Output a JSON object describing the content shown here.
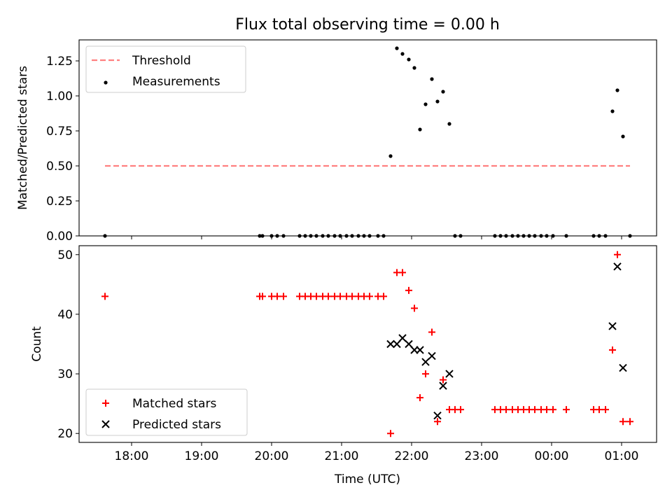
{
  "chart_data": {
    "type": "scatter",
    "title": "Flux total observing time = 0.00 h",
    "xlabel": "Time (UTC)",
    "x_ticks": [
      "18:00",
      "19:00",
      "20:00",
      "21:00",
      "22:00",
      "23:00",
      "00:00",
      "01:00"
    ],
    "x_tick_hours": [
      18,
      19,
      20,
      21,
      22,
      23,
      24,
      25
    ],
    "xlim": [
      17.25,
      25.5
    ],
    "panels": [
      {
        "ylabel": "Matched/Predicted stars",
        "ylim": [
          0,
          1.4
        ],
        "y_ticks": [
          "0.00",
          "0.25",
          "0.50",
          "0.75",
          "1.00",
          "1.25"
        ],
        "y_tick_values": [
          0,
          0.25,
          0.5,
          0.75,
          1.0,
          1.25
        ],
        "legend_position": "top-left",
        "series": [
          {
            "name": "Threshold",
            "kind": "dashed-line",
            "color": "#ff8080",
            "x": [
              17.62,
              25.12
            ],
            "y": [
              0.5,
              0.5
            ]
          },
          {
            "name": "Measurements",
            "kind": "dot",
            "color": "#000000",
            "x": [
              17.62,
              19.83,
              19.87,
              20.0,
              20.08,
              20.17,
              20.4,
              20.48,
              20.56,
              20.64,
              20.73,
              20.81,
              20.9,
              20.98,
              21.07,
              21.15,
              21.24,
              21.32,
              21.4,
              21.52,
              21.6,
              21.7,
              21.79,
              21.87,
              21.96,
              22.04,
              22.12,
              22.2,
              22.29,
              22.37,
              22.45,
              22.54,
              22.62,
              22.7,
              23.19,
              23.27,
              23.35,
              23.44,
              23.52,
              23.6,
              23.68,
              23.76,
              23.85,
              23.93,
              24.02,
              24.21,
              24.6,
              24.68,
              24.77,
              24.87,
              24.94,
              25.02,
              25.12
            ],
            "y": [
              0,
              0,
              0,
              0,
              0,
              0,
              0,
              0,
              0,
              0,
              0,
              0,
              0,
              0,
              0,
              0,
              0,
              0,
              0,
              0,
              0,
              0.57,
              1.34,
              1.3,
              1.26,
              1.2,
              0.76,
              0.94,
              1.12,
              0.96,
              1.03,
              0.8,
              0,
              0,
              0,
              0,
              0,
              0,
              0,
              0,
              0,
              0,
              0,
              0,
              0,
              0,
              0,
              0,
              0,
              0.89,
              1.04,
              0.71,
              0
            ]
          }
        ]
      },
      {
        "ylabel": "Count",
        "ylim": [
          18.5,
          51.5
        ],
        "y_ticks": [
          "20",
          "30",
          "40",
          "50"
        ],
        "y_tick_values": [
          20,
          30,
          40,
          50
        ],
        "legend_position": "bottom-left",
        "series": [
          {
            "name": "Matched stars",
            "kind": "plus",
            "color": "#ff0000",
            "x": [
              17.62,
              19.83,
              19.87,
              20.0,
              20.08,
              20.17,
              20.4,
              20.48,
              20.56,
              20.64,
              20.73,
              20.81,
              20.9,
              20.98,
              21.07,
              21.15,
              21.24,
              21.32,
              21.4,
              21.52,
              21.6,
              21.7,
              21.79,
              21.87,
              21.96,
              22.04,
              22.12,
              22.2,
              22.29,
              22.37,
              22.45,
              22.54,
              22.62,
              22.7,
              23.19,
              23.27,
              23.35,
              23.44,
              23.52,
              23.6,
              23.68,
              23.76,
              23.85,
              23.93,
              24.02,
              24.21,
              24.6,
              24.68,
              24.77,
              24.87,
              24.94,
              25.02,
              25.12
            ],
            "y": [
              43,
              43,
              43,
              43,
              43,
              43,
              43,
              43,
              43,
              43,
              43,
              43,
              43,
              43,
              43,
              43,
              43,
              43,
              43,
              43,
              43,
              20,
              47,
              47,
              44,
              41,
              26,
              30,
              37,
              22,
              29,
              24,
              24,
              24,
              24,
              24,
              24,
              24,
              24,
              24,
              24,
              24,
              24,
              24,
              24,
              24,
              24,
              24,
              24,
              34,
              50,
              22,
              22
            ]
          },
          {
            "name": "Predicted stars",
            "kind": "x",
            "color": "#000000",
            "x": [
              21.7,
              21.79,
              21.87,
              21.96,
              22.04,
              22.12,
              22.2,
              22.29,
              22.37,
              22.45,
              22.54,
              24.87,
              24.94,
              25.02
            ],
            "y": [
              35,
              35,
              36,
              35,
              34,
              34,
              32,
              33,
              23,
              28,
              30,
              38,
              48,
              31
            ]
          }
        ]
      }
    ]
  }
}
